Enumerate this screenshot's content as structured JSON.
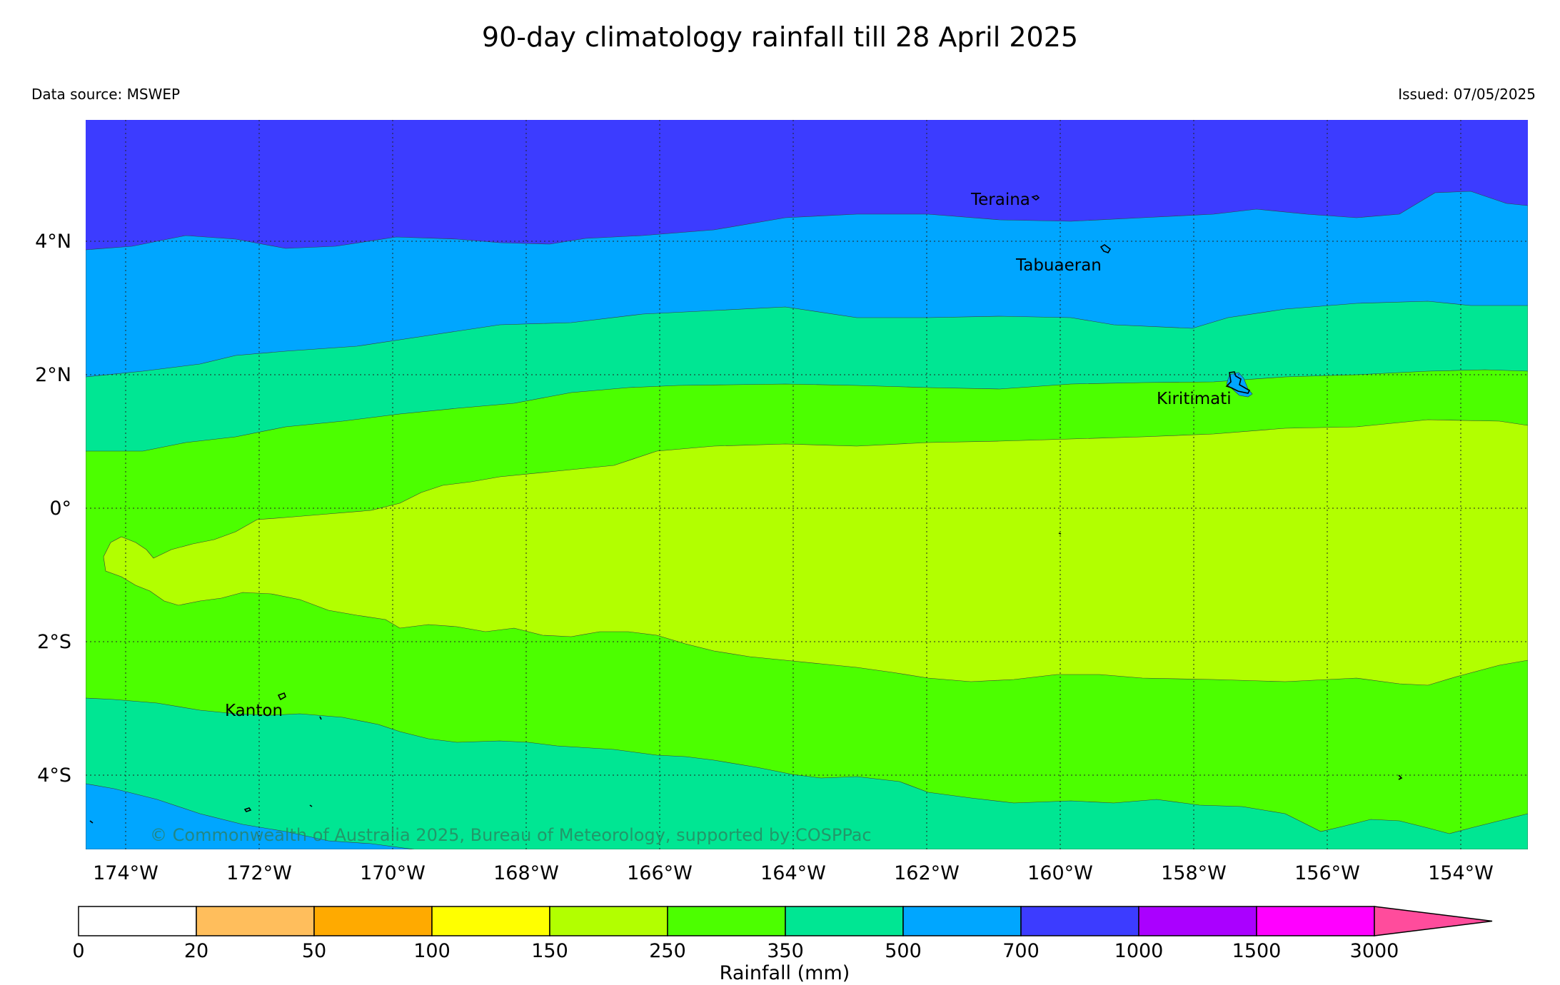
{
  "title": "90-day climatology rainfall till 28 April 2025",
  "data_source": "Data source: MSWEP",
  "issued": "Issued: 07/05/2025",
  "copyright": "© Commonwealth of Australia 2025, Bureau of Meteorology, supported by COSPPac",
  "map": {
    "lon_labels": [
      "174°W",
      "172°W",
      "170°W",
      "168°W",
      "166°W",
      "164°W",
      "162°W",
      "160°W",
      "158°W",
      "156°W",
      "154°W"
    ],
    "lat_labels": [
      "4°N",
      "2°N",
      "0°",
      "2°S",
      "4°S"
    ],
    "places": [
      "Teraina",
      "Tabuaeran",
      "Kiritimati",
      "Kanton"
    ]
  },
  "colorbar": {
    "label": "Rainfall (mm)",
    "ticks": [
      "0",
      "20",
      "50",
      "100",
      "150",
      "250",
      "350",
      "500",
      "700",
      "1000",
      "1500",
      "3000"
    ],
    "colors": [
      "#ffffff",
      "#ffbe5c",
      "#ffaa00",
      "#ffff00",
      "#b2ff00",
      "#4cff00",
      "#00e693",
      "#00a6ff",
      "#3c3cff",
      "#aa00ff",
      "#ff00ff",
      "#ff4c9c"
    ]
  },
  "rainfall_bands": [
    {
      "range": "150-250",
      "color": "#b2ff00"
    },
    {
      "range": "250-350",
      "color": "#4cff00"
    },
    {
      "range": "350-500",
      "color": "#00e693"
    },
    {
      "range": "500-700",
      "color": "#00a6ff"
    },
    {
      "range": "700-1000",
      "color": "#3c3cff"
    }
  ]
}
